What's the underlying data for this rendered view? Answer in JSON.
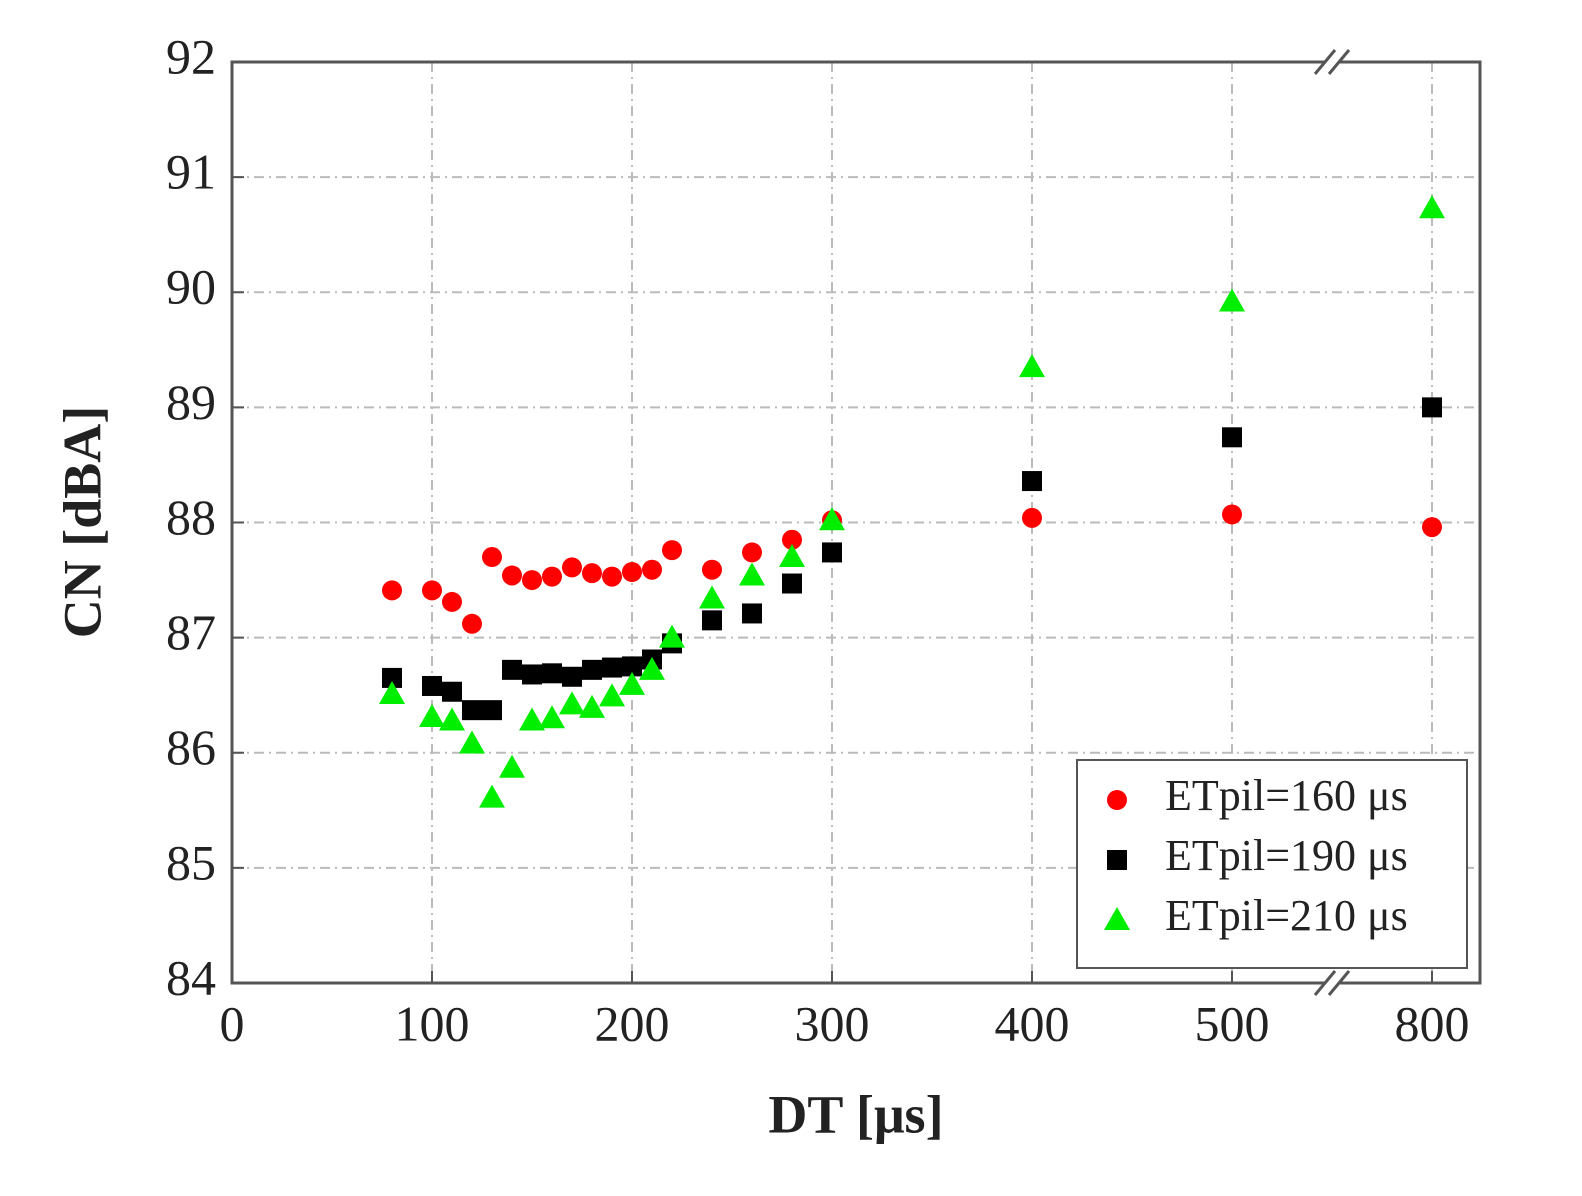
{
  "chart_data": {
    "type": "scatter",
    "x_label": "DT [μs]",
    "y_label": "CN [dBA]",
    "xlim": [
      0,
      800
    ],
    "xticks": [
      0,
      100,
      200,
      300,
      400,
      500,
      800
    ],
    "x_break": [
      500,
      800
    ],
    "ylim": [
      84,
      92
    ],
    "yticks": [
      84,
      85,
      86,
      87,
      88,
      89,
      90,
      91,
      92
    ],
    "grid": true,
    "legend": "lower right",
    "x": [
      80,
      100,
      110,
      120,
      130,
      140,
      150,
      160,
      170,
      180,
      190,
      200,
      210,
      220,
      240,
      260,
      280,
      300,
      400,
      500,
      800
    ],
    "series": [
      {
        "name": "ETpil=160 μs",
        "color": "#ff0000",
        "marker": "circle",
        "values": [
          87.41,
          87.41,
          87.31,
          87.12,
          87.7,
          87.54,
          87.5,
          87.53,
          87.61,
          87.56,
          87.53,
          87.57,
          87.59,
          87.76,
          87.59,
          87.74,
          87.85,
          88.02,
          88.04,
          88.07,
          87.96
        ]
      },
      {
        "name": "ETpil=190 μs",
        "color": "#000000",
        "marker": "square",
        "values": [
          86.65,
          86.58,
          86.53,
          86.37,
          86.37,
          86.72,
          86.68,
          86.69,
          86.66,
          86.72,
          86.74,
          86.75,
          86.81,
          86.95,
          87.15,
          87.21,
          87.47,
          87.74,
          88.36,
          88.74,
          89.0
        ]
      },
      {
        "name": "ETpil=210 μs",
        "color": "#00ee00",
        "marker": "triangle",
        "values": [
          86.51,
          86.31,
          86.28,
          86.08,
          85.61,
          85.87,
          86.28,
          86.3,
          86.42,
          86.39,
          86.49,
          86.59,
          86.72,
          87.0,
          87.34,
          87.54,
          87.7,
          88.02,
          89.35,
          89.92,
          90.73
        ]
      }
    ]
  }
}
